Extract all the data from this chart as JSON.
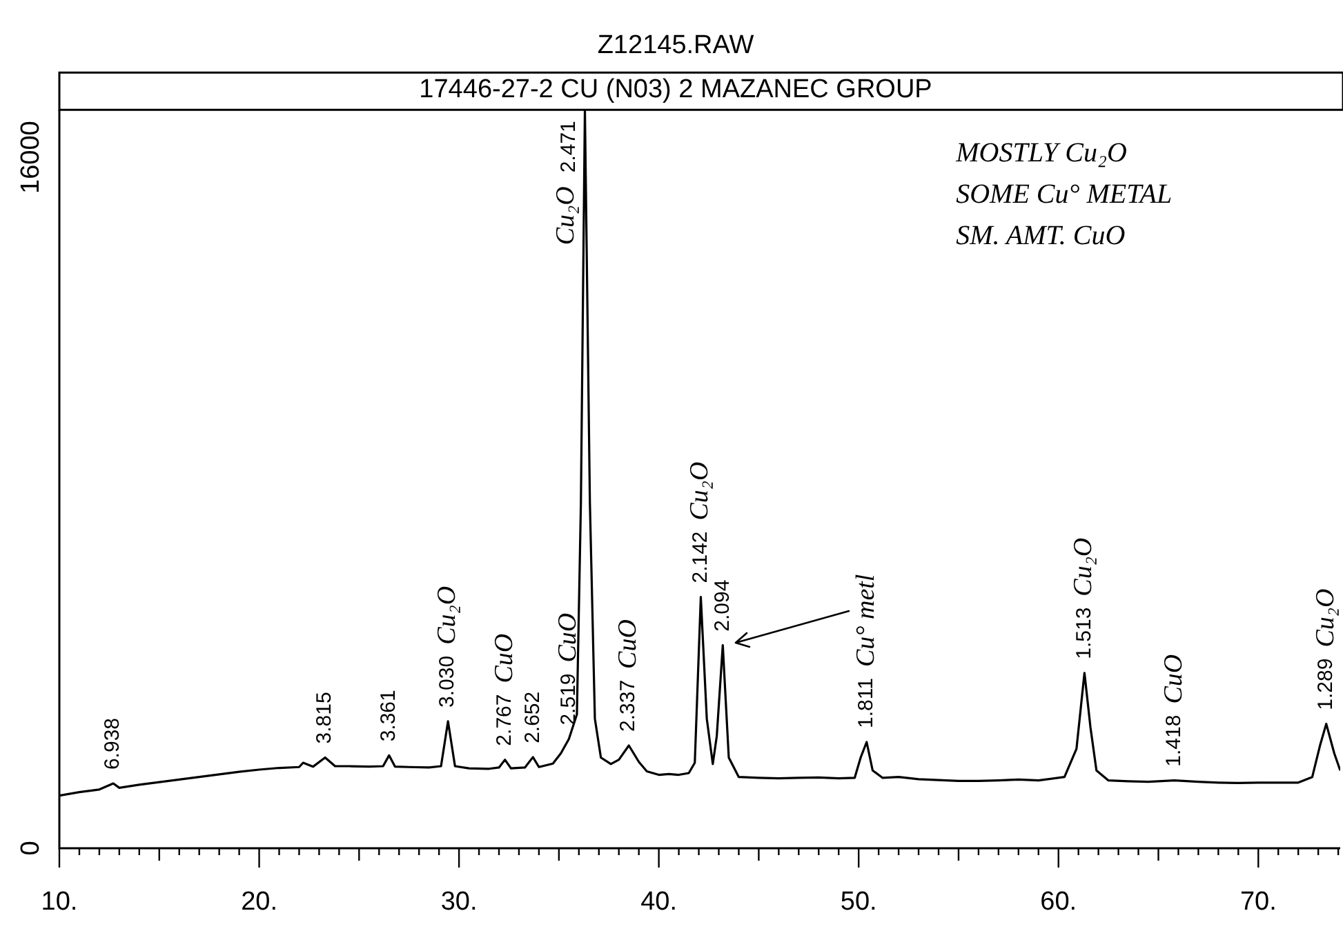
{
  "chart_data": {
    "type": "line",
    "title": "Z12145.RAW",
    "subtitle": "17446-27-2 CU (N03) 2 MAZANEC GROUP",
    "x": [
      10,
      11,
      12,
      12.7,
      13,
      14,
      15,
      16,
      17,
      18,
      19,
      20,
      21,
      22,
      22.2,
      22.7,
      23.3,
      23.8,
      24.5,
      25.5,
      26.2,
      26.5,
      26.8,
      27.5,
      28.5,
      29.1,
      29.45,
      29.8,
      30.5,
      31.5,
      32.0,
      32.3,
      32.6,
      33.3,
      33.7,
      34.0,
      34.7,
      35.1,
      35.5,
      35.9,
      36.1,
      36.3,
      36.55,
      36.8,
      37.1,
      37.6,
      38.0,
      38.5,
      39.0,
      39.4,
      40.0,
      40.5,
      41.0,
      41.5,
      41.8,
      42.1,
      42.4,
      42.7,
      42.9,
      43.2,
      43.5,
      44.0,
      45,
      46,
      47,
      48,
      49,
      49.8,
      50.1,
      50.4,
      50.7,
      51.2,
      52,
      53,
      54,
      55,
      56,
      57,
      58,
      59,
      60.3,
      60.9,
      61.3,
      61.6,
      61.9,
      62.5,
      63.5,
      64.5,
      65.8,
      67,
      68,
      69,
      70,
      71,
      72,
      72.7,
      73.1,
      73.4,
      73.8,
      74.1
    ],
    "series": [
      {
        "color": "#000000",
        "values": [
          1220,
          1300,
          1360,
          1500,
          1400,
          1470,
          1530,
          1590,
          1650,
          1710,
          1770,
          1820,
          1860,
          1880,
          1980,
          1890,
          2100,
          1900,
          1900,
          1890,
          1900,
          2150,
          1890,
          1880,
          1870,
          1900,
          2940,
          1900,
          1850,
          1840,
          1870,
          2050,
          1850,
          1870,
          2110,
          1880,
          1960,
          2200,
          2530,
          3100,
          8000,
          17100,
          8000,
          3000,
          2100,
          1950,
          2050,
          2380,
          2000,
          1780,
          1700,
          1720,
          1700,
          1740,
          1980,
          5820,
          3000,
          1950,
          2600,
          4700,
          2100,
          1650,
          1630,
          1620,
          1630,
          1640,
          1620,
          1630,
          2100,
          2460,
          1800,
          1630,
          1650,
          1600,
          1580,
          1560,
          1560,
          1570,
          1590,
          1570,
          1650,
          2300,
          4060,
          2800,
          1800,
          1570,
          1550,
          1540,
          1570,
          1540,
          1520,
          1510,
          1520,
          1520,
          1520,
          1650,
          2400,
          2880,
          2200,
          1800
        ]
      }
    ],
    "xlim": [
      10,
      74.1
    ],
    "xticks": [
      {
        "value": 10,
        "label": "10."
      },
      {
        "value": 11,
        "label": null
      },
      {
        "value": 12,
        "label": null
      },
      {
        "value": 13,
        "label": null
      },
      {
        "value": 14,
        "label": null
      },
      {
        "value": 15,
        "label": null
      },
      {
        "value": 16,
        "label": null
      },
      {
        "value": 17,
        "label": null
      },
      {
        "value": 18,
        "label": null
      },
      {
        "value": 19,
        "label": null
      },
      {
        "value": 20,
        "label": "20."
      },
      {
        "value": 21,
        "label": null
      },
      {
        "value": 22,
        "label": null
      },
      {
        "value": 23,
        "label": null
      },
      {
        "value": 24,
        "label": null
      },
      {
        "value": 25,
        "label": null
      },
      {
        "value": 26,
        "label": null
      },
      {
        "value": 27,
        "label": null
      },
      {
        "value": 28,
        "label": null
      },
      {
        "value": 29,
        "label": null
      },
      {
        "value": 30,
        "label": "30."
      },
      {
        "value": 31,
        "label": null
      },
      {
        "value": 32,
        "label": null
      },
      {
        "value": 33,
        "label": null
      },
      {
        "value": 34,
        "label": null
      },
      {
        "value": 35,
        "label": null
      },
      {
        "value": 36,
        "label": null
      },
      {
        "value": 37,
        "label": null
      },
      {
        "value": 38,
        "label": null
      },
      {
        "value": 39,
        "label": null
      },
      {
        "value": 40,
        "label": "40."
      },
      {
        "value": 41,
        "label": null
      },
      {
        "value": 42,
        "label": null
      },
      {
        "value": 43,
        "label": null
      },
      {
        "value": 44,
        "label": null
      },
      {
        "value": 45,
        "label": null
      },
      {
        "value": 46,
        "label": null
      },
      {
        "value": 47,
        "label": null
      },
      {
        "value": 48,
        "label": null
      },
      {
        "value": 49,
        "label": null
      },
      {
        "value": 50,
        "label": "50."
      },
      {
        "value": 51,
        "label": null
      },
      {
        "value": 52,
        "label": null
      },
      {
        "value": 53,
        "label": null
      },
      {
        "value": 54,
        "label": null
      },
      {
        "value": 55,
        "label": null
      },
      {
        "value": 56,
        "label": null
      },
      {
        "value": 57,
        "label": null
      },
      {
        "value": 58,
        "label": null
      },
      {
        "value": 59,
        "label": null
      },
      {
        "value": 60,
        "label": "60."
      },
      {
        "value": 61,
        "label": null
      },
      {
        "value": 62,
        "label": null
      },
      {
        "value": 63,
        "label": null
      },
      {
        "value": 64,
        "label": null
      },
      {
        "value": 65,
        "label": null
      },
      {
        "value": 66,
        "label": null
      },
      {
        "value": 67,
        "label": null
      },
      {
        "value": 68,
        "label": null
      },
      {
        "value": 69,
        "label": null
      },
      {
        "value": 70,
        "label": "70."
      },
      {
        "value": 71,
        "label": null
      },
      {
        "value": 72,
        "label": null
      },
      {
        "value": 73,
        "label": null
      },
      {
        "value": 74,
        "label": null
      }
    ],
    "ylim": [
      0,
      17100
    ],
    "yticks": [
      0,
      16000
    ],
    "grid": false,
    "legend": false,
    "marker": "none",
    "line_style": "solid",
    "annotations": [
      {
        "text": "6.938",
        "x": 12.7,
        "y": 1500
      },
      {
        "text": "3.815",
        "x": 23.3,
        "y": 2100
      },
      {
        "text": "3.361",
        "x": 26.5,
        "y": 2150
      },
      {
        "text": "3.030",
        "x": 29.45,
        "y": 2940
      },
      {
        "text": "2.767",
        "x": 32.3,
        "y": 2050
      },
      {
        "text": "2.652",
        "x": 33.7,
        "y": 2110
      },
      {
        "text": "2.519",
        "x": 35.5,
        "y": 2530
      },
      {
        "text": "2.471",
        "x": 36.3,
        "y": 17100
      },
      {
        "text": "2.337",
        "x": 38.5,
        "y": 2380
      },
      {
        "text": "2.142",
        "x": 42.1,
        "y": 5820
      },
      {
        "text": "2.094",
        "x": 43.2,
        "y": 4700
      },
      {
        "text": "1.811",
        "x": 50.4,
        "y": 2460
      },
      {
        "text": "1.513",
        "x": 61.3,
        "y": 4060
      },
      {
        "text": "1.418",
        "x": 65.8,
        "y": 1570
      },
      {
        "text": "1.289",
        "x": 73.4,
        "y": 2880
      },
      {
        "text": "Cu₂O",
        "x": 29.45,
        "y": 2940
      },
      {
        "text": "CuO",
        "x": 32.3,
        "y": 2050
      },
      {
        "text": "CuO",
        "x": 35.5,
        "y": 2530
      },
      {
        "text": "Cu₂O",
        "x": 36.3,
        "y": 17100
      },
      {
        "text": "CuO",
        "x": 38.5,
        "y": 2380
      },
      {
        "text": "Cu₂O",
        "x": 42.1,
        "y": 5820
      },
      {
        "text": "Cu° metl",
        "x": 50.4,
        "y": 2460
      },
      {
        "text": "Cu₂O",
        "x": 61.3,
        "y": 4060
      },
      {
        "text": "CuO",
        "x": 65.8,
        "y": 1570
      },
      {
        "text": "Cu₂O",
        "x": 73.4,
        "y": 2880
      },
      "MOSTLY Cu₂O",
      "SOME Cu° METAL",
      "SM. AMT. CuO"
    ]
  }
}
